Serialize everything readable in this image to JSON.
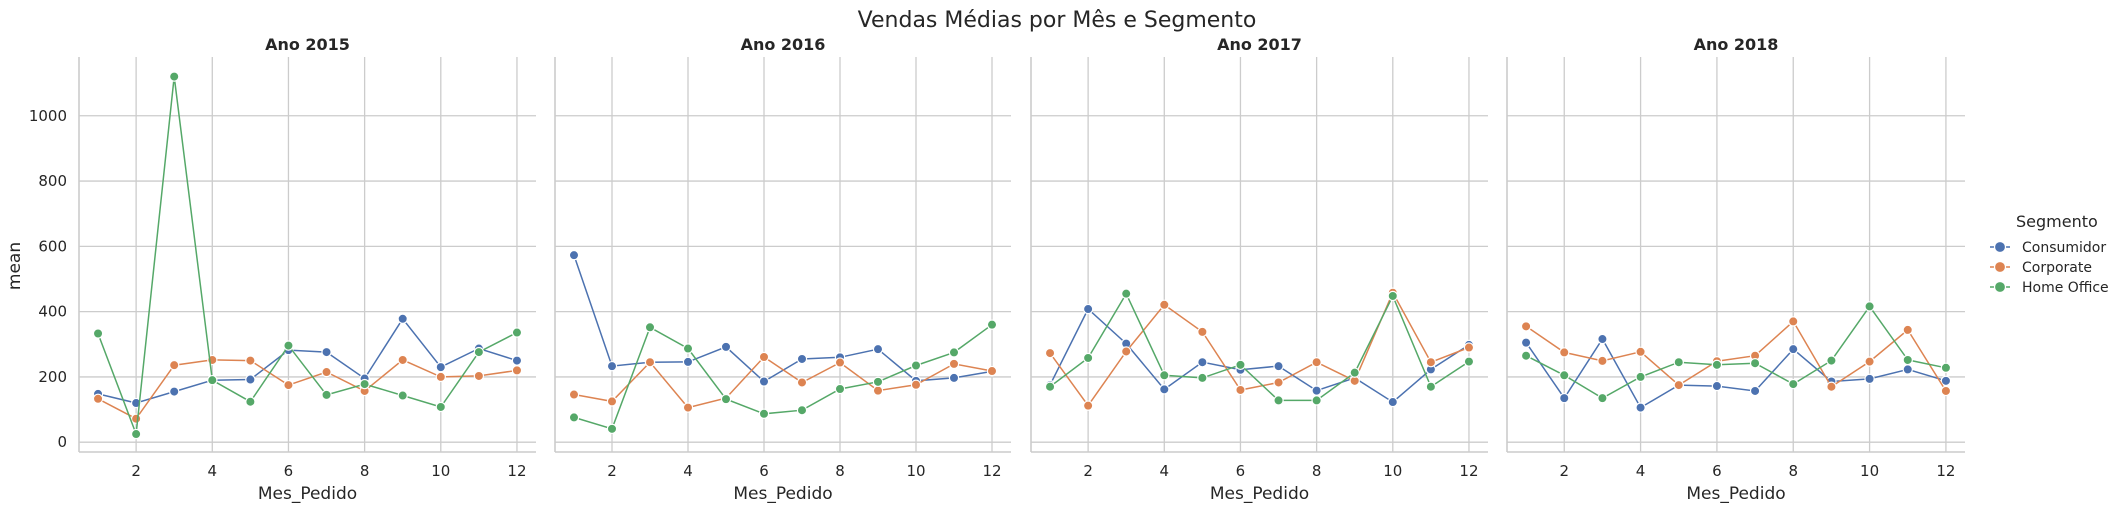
{
  "chart_data": {
    "type": "line",
    "title": "Vendas Médias por Mês e Segmento",
    "xlabel": "Mes_Pedido",
    "ylabel": "mean",
    "xlim": [
      0.5,
      12.5
    ],
    "ylim": [
      -30,
      1180
    ],
    "xticks": [
      2,
      4,
      6,
      8,
      10,
      12
    ],
    "yticks": [
      0,
      200,
      400,
      600,
      800,
      1000
    ],
    "grid": true,
    "x": [
      1,
      2,
      3,
      4,
      5,
      6,
      7,
      8,
      9,
      10,
      11,
      12
    ],
    "legend": {
      "title": "Segmento",
      "placement": "right",
      "entries": [
        "Consumidor",
        "Corporate",
        "Home Office"
      ]
    },
    "colors": {
      "Consumidor": "#4c72b0",
      "Corporate": "#dd8452",
      "Home Office": "#55a868"
    },
    "panels": [
      {
        "title": "Ano 2015",
        "series": [
          {
            "name": "Consumidor",
            "values": [
              148,
              120,
              155,
              190,
              192,
              282,
              276,
              195,
              378,
              230,
              287,
              250
            ]
          },
          {
            "name": "Corporate",
            "values": [
              133,
              72,
              236,
              252,
              250,
              175,
              215,
              157,
              252,
              200,
              203,
              220
            ]
          },
          {
            "name": "Home Office",
            "values": [
              333,
              25,
              1120,
              190,
              124,
              296,
              145,
              178,
              143,
              108,
              276,
              336
            ]
          }
        ]
      },
      {
        "title": "Ano 2016",
        "series": [
          {
            "name": "Consumidor",
            "values": [
              573,
              233,
              245,
              246,
              292,
              186,
              255,
              260,
              285,
              188,
              197,
              217
            ]
          },
          {
            "name": "Corporate",
            "values": [
              146,
              125,
              245,
              106,
              135,
              261,
              183,
              244,
              158,
              176,
              240,
              218
            ]
          },
          {
            "name": "Home Office",
            "values": [
              76,
              41,
              352,
              287,
              132,
              87,
              98,
              163,
              185,
              235,
              275,
              360
            ]
          }
        ]
      },
      {
        "title": "Ano 2017",
        "series": [
          {
            "name": "Consumidor",
            "values": [
              175,
              408,
              302,
              162,
              245,
              222,
              233,
              158,
              197,
              123,
              223,
              298
            ]
          },
          {
            "name": "Corporate",
            "values": [
              273,
              112,
              278,
              421,
              338,
              160,
              183,
              245,
              188,
              458,
              245,
              290
            ]
          },
          {
            "name": "Home Office",
            "values": [
              170,
              258,
              455,
              205,
              197,
              237,
              128,
              128,
              213,
              448,
              170,
              247
            ]
          }
        ]
      },
      {
        "title": "Ano 2018",
        "series": [
          {
            "name": "Consumidor",
            "values": [
              305,
              135,
              316,
              106,
              175,
              172,
              157,
              285,
              186,
              194,
              223,
              188
            ]
          },
          {
            "name": "Corporate",
            "values": [
              355,
              275,
              249,
              277,
              175,
              248,
              265,
              370,
              170,
              247,
              344,
              157
            ]
          },
          {
            "name": "Home Office",
            "values": [
              265,
              205,
              135,
              200,
              245,
              237,
              242,
              178,
              250,
              416,
              252,
              228
            ]
          }
        ]
      }
    ]
  }
}
